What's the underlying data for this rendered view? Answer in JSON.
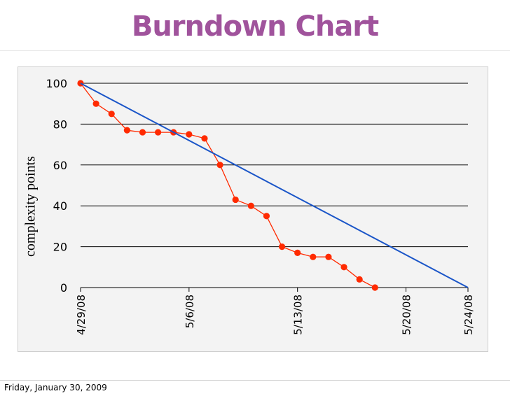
{
  "slide": {
    "title": "Burndown Chart",
    "footer_date": "Friday, January 30, 2009"
  },
  "colors": {
    "title": "#a0539c",
    "actual": "#ff2a00",
    "ideal": "#1a55c8",
    "gridline": "#000000",
    "panel": "#f3f3f3"
  },
  "chart_data": {
    "type": "line",
    "title": "Burndown Chart",
    "xlabel": "",
    "ylabel": "complexity points",
    "ylim": [
      0,
      100
    ],
    "yticks": [
      0,
      20,
      40,
      60,
      80,
      100
    ],
    "xlim": [
      "2008-04-29",
      "2008-05-24"
    ],
    "xticks": [
      {
        "date": "2008-04-29",
        "label": "4/29/08"
      },
      {
        "date": "2008-05-06",
        "label": "5/6/08"
      },
      {
        "date": "2008-05-13",
        "label": "5/13/08"
      },
      {
        "date": "2008-05-20",
        "label": "5/20/08"
      },
      {
        "date": "2008-05-24",
        "label": "5/24/08"
      }
    ],
    "grid": "horizontal",
    "series": [
      {
        "style": "line-with-markers",
        "color": "#ff2a00",
        "points": [
          {
            "x": "2008-04-29",
            "y": 100
          },
          {
            "x": "2008-04-30",
            "y": 90
          },
          {
            "x": "2008-05-01",
            "y": 85
          },
          {
            "x": "2008-05-02",
            "y": 77
          },
          {
            "x": "2008-05-03",
            "y": 76
          },
          {
            "x": "2008-05-04",
            "y": 76
          },
          {
            "x": "2008-05-05",
            "y": 76
          },
          {
            "x": "2008-05-06",
            "y": 75
          },
          {
            "x": "2008-05-07",
            "y": 73
          },
          {
            "x": "2008-05-08",
            "y": 60
          },
          {
            "x": "2008-05-09",
            "y": 43
          },
          {
            "x": "2008-05-10",
            "y": 40
          },
          {
            "x": "2008-05-11",
            "y": 35
          },
          {
            "x": "2008-05-12",
            "y": 20
          },
          {
            "x": "2008-05-13",
            "y": 17
          },
          {
            "x": "2008-05-14",
            "y": 15
          },
          {
            "x": "2008-05-15",
            "y": 15
          },
          {
            "x": "2008-05-16",
            "y": 10
          },
          {
            "x": "2008-05-17",
            "y": 4
          },
          {
            "x": "2008-05-18",
            "y": 0
          }
        ]
      },
      {
        "style": "line",
        "color": "#1a55c8",
        "points": [
          {
            "x": "2008-04-29",
            "y": 100
          },
          {
            "x": "2008-05-24",
            "y": 0
          }
        ]
      }
    ]
  }
}
